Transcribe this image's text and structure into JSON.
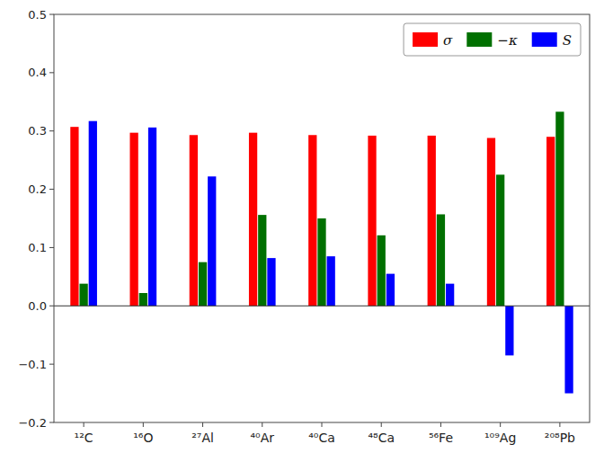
{
  "chart_data": {
    "type": "bar",
    "categories": [
      "¹²C",
      "¹⁶O",
      "²⁷Al",
      "⁴⁰Ar",
      "⁴⁰Ca",
      "⁴⁸Ca",
      "⁵⁶Fe",
      "¹⁰⁹Ag",
      "²⁰⁸Pb"
    ],
    "series": [
      {
        "name": "σ",
        "color": "#ff0000",
        "values": [
          0.307,
          0.297,
          0.293,
          0.297,
          0.293,
          0.292,
          0.292,
          0.288,
          0.29
        ]
      },
      {
        "name": "−κ",
        "color": "#007000",
        "values": [
          0.038,
          0.022,
          0.075,
          0.156,
          0.15,
          0.121,
          0.157,
          0.225,
          0.333
        ]
      },
      {
        "name": "S",
        "color": "#0000ff",
        "values": [
          0.317,
          0.306,
          0.222,
          0.082,
          0.085,
          0.055,
          0.038,
          -0.085,
          -0.15
        ]
      }
    ],
    "ylim": [
      -0.2,
      0.5
    ],
    "yticks": [
      {
        "value": -0.2,
        "label": "−0.2"
      },
      {
        "value": -0.1,
        "label": "−0.1"
      },
      {
        "value": 0.0,
        "label": "0.0"
      },
      0.1,
      0.2,
      0.3,
      0.4,
      0.5
    ],
    "grid": false,
    "legend": "upper right"
  }
}
